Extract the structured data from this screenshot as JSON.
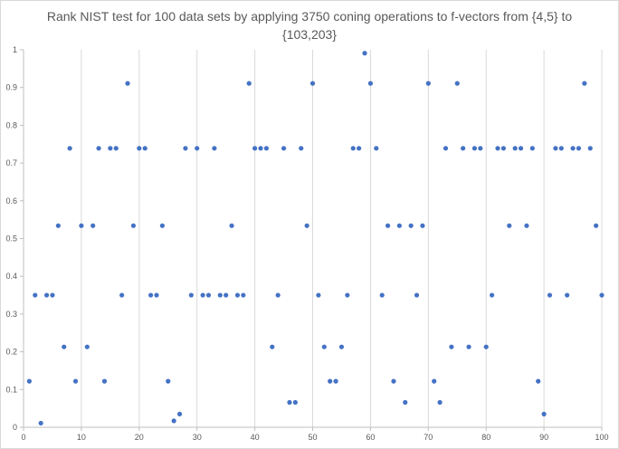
{
  "chart_data": {
    "type": "scatter",
    "title_line1": "Rank NIST test for 100 data sets by applying 3750 coning operations to f-vectors from {4,5} to",
    "title_line2": "{103,203}",
    "xlabel": "",
    "ylabel": "",
    "xlim": [
      0,
      100
    ],
    "ylim": [
      0,
      1
    ],
    "x_ticks": [
      0,
      10,
      20,
      30,
      40,
      50,
      60,
      70,
      80,
      90,
      100
    ],
    "y_ticks": [
      0,
      0.1,
      0.2,
      0.3,
      0.4,
      0.5,
      0.6,
      0.7,
      0.8,
      0.9,
      1
    ],
    "grid": "vertical",
    "marker_color": "#4472c4",
    "points": [
      [
        1,
        0.122
      ],
      [
        2,
        0.35
      ],
      [
        3,
        0.011
      ],
      [
        4,
        0.35
      ],
      [
        5,
        0.35
      ],
      [
        6,
        0.534
      ],
      [
        7,
        0.213
      ],
      [
        8,
        0.739
      ],
      [
        9,
        0.122
      ],
      [
        10,
        0.534
      ],
      [
        11,
        0.213
      ],
      [
        12,
        0.534
      ],
      [
        13,
        0.739
      ],
      [
        14,
        0.122
      ],
      [
        15,
        0.739
      ],
      [
        16,
        0.739
      ],
      [
        17,
        0.35
      ],
      [
        18,
        0.911
      ],
      [
        19,
        0.534
      ],
      [
        20,
        0.739
      ],
      [
        21,
        0.739
      ],
      [
        22,
        0.35
      ],
      [
        23,
        0.35
      ],
      [
        24,
        0.534
      ],
      [
        25,
        0.122
      ],
      [
        26,
        0.017
      ],
      [
        27,
        0.035
      ],
      [
        28,
        0.739
      ],
      [
        29,
        0.35
      ],
      [
        30,
        0.739
      ],
      [
        31,
        0.35
      ],
      [
        32,
        0.35
      ],
      [
        33,
        0.739
      ],
      [
        34,
        0.35
      ],
      [
        35,
        0.35
      ],
      [
        36,
        0.534
      ],
      [
        37,
        0.35
      ],
      [
        38,
        0.35
      ],
      [
        39,
        0.911
      ],
      [
        40,
        0.739
      ],
      [
        41,
        0.739
      ],
      [
        42,
        0.739
      ],
      [
        43,
        0.213
      ],
      [
        44,
        0.35
      ],
      [
        45,
        0.739
      ],
      [
        46,
        0.066
      ],
      [
        47,
        0.066
      ],
      [
        48,
        0.739
      ],
      [
        49,
        0.534
      ],
      [
        50,
        0.911
      ],
      [
        51,
        0.35
      ],
      [
        52,
        0.213
      ],
      [
        53,
        0.122
      ],
      [
        54,
        0.122
      ],
      [
        55,
        0.213
      ],
      [
        56,
        0.35
      ],
      [
        57,
        0.739
      ],
      [
        58,
        0.739
      ],
      [
        59,
        0.991
      ],
      [
        60,
        0.911
      ],
      [
        61,
        0.739
      ],
      [
        62,
        0.35
      ],
      [
        63,
        0.534
      ],
      [
        64,
        0.122
      ],
      [
        65,
        0.534
      ],
      [
        66,
        0.066
      ],
      [
        67,
        0.534
      ],
      [
        68,
        0.35
      ],
      [
        69,
        0.534
      ],
      [
        70,
        0.911
      ],
      [
        71,
        0.122
      ],
      [
        72,
        0.066
      ],
      [
        73,
        0.739
      ],
      [
        74,
        0.213
      ],
      [
        75,
        0.911
      ],
      [
        76,
        0.739
      ],
      [
        77,
        0.213
      ],
      [
        78,
        0.739
      ],
      [
        79,
        0.739
      ],
      [
        80,
        0.213
      ],
      [
        81,
        0.35
      ],
      [
        82,
        0.739
      ],
      [
        83,
        0.739
      ],
      [
        84,
        0.534
      ],
      [
        85,
        0.739
      ],
      [
        86,
        0.739
      ],
      [
        87,
        0.534
      ],
      [
        88,
        0.739
      ],
      [
        89,
        0.122
      ],
      [
        90,
        0.035
      ],
      [
        91,
        0.35
      ],
      [
        92,
        0.739
      ],
      [
        93,
        0.739
      ],
      [
        94,
        0.35
      ],
      [
        95,
        0.739
      ],
      [
        96,
        0.739
      ],
      [
        97,
        0.911
      ],
      [
        98,
        0.739
      ],
      [
        99,
        0.534
      ],
      [
        100,
        0.35
      ]
    ]
  }
}
